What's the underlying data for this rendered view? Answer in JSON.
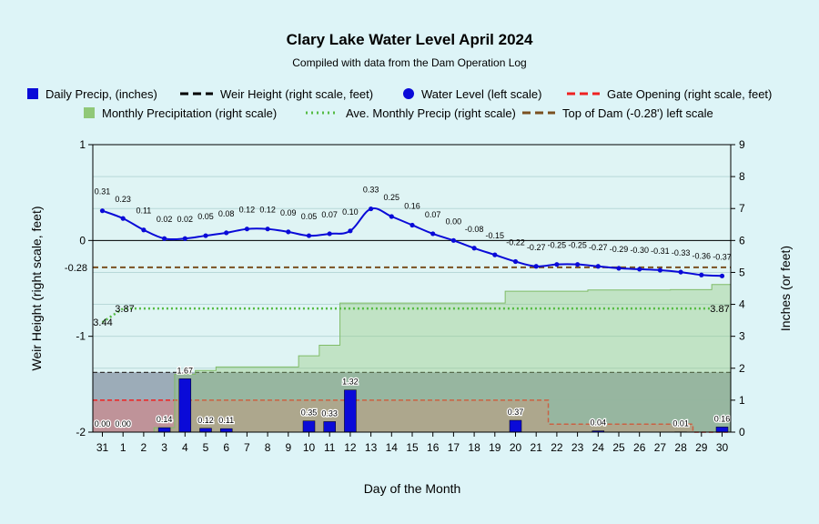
{
  "chart_data": {
    "type": "bar",
    "title": "Clary Lake Water Level April 2024",
    "subtitle": "Compiled with data from the Dam Operation Log",
    "xlabel": "Day of the Month",
    "ylabel_left": "Weir Height (right scale, feet)",
    "ylabel_right": "Inches (or feet)",
    "x_ticks": [
      "31",
      "1",
      "2",
      "3",
      "4",
      "5",
      "6",
      "7",
      "8",
      "9",
      "10",
      "11",
      "12",
      "13",
      "14",
      "15",
      "16",
      "17",
      "18",
      "19",
      "20",
      "21",
      "22",
      "23",
      "24",
      "25",
      "26",
      "27",
      "28",
      "29",
      "30"
    ],
    "y_left_ticks": [
      "1",
      "0",
      "-1",
      "-2"
    ],
    "y_right_ticks": [
      "0",
      "1",
      "2",
      "3",
      "4",
      "5",
      "6",
      "7",
      "8",
      "9"
    ],
    "ylim_left": [
      -2,
      1
    ],
    "ylim_right": [
      0,
      9
    ],
    "legend_position": "top",
    "legend": [
      {
        "label": "Daily Precip, (inches)",
        "marker": "square",
        "color": "#0a0ad8"
      },
      {
        "label": "Weir Height (right scale, feet)",
        "marker": "dash",
        "color": "#000000"
      },
      {
        "label": "Water Level (left scale)",
        "marker": "circle",
        "color": "#0a0ad8"
      },
      {
        "label": "Gate Opening (right scale, feet)",
        "marker": "dash",
        "color": "#ee2222"
      },
      {
        "label": "Monthly Precipitation (right scale)",
        "marker": "square",
        "color": "#90c878"
      },
      {
        "label": "Ave. Monthly Precip (right scale)",
        "marker": "dots",
        "color": "#55bb44"
      },
      {
        "label": "Top of Dam (-0.28') left scale",
        "marker": "dash",
        "color": "#7a5020"
      }
    ],
    "series": [
      {
        "name": "Water Level (left scale)",
        "color": "#0a0ad8",
        "x": [
          31,
          1,
          2,
          3,
          4,
          5,
          6,
          7,
          8,
          9,
          10,
          11,
          12,
          13,
          14,
          15,
          16,
          17,
          18,
          19,
          20,
          21,
          22,
          23,
          24,
          25,
          26,
          27,
          28,
          29,
          30
        ],
        "values": [
          0.31,
          0.23,
          0.11,
          0.02,
          0.02,
          0.05,
          0.08,
          0.12,
          0.12,
          0.09,
          0.05,
          0.07,
          0.1,
          0.33,
          0.25,
          0.16,
          0.07,
          0.0,
          -0.08,
          -0.15,
          -0.22,
          -0.27,
          -0.25,
          -0.25,
          -0.27,
          -0.29,
          -0.3,
          -0.31,
          -0.33,
          -0.36,
          -0.37
        ],
        "labels": [
          "0.31",
          "0.23",
          "0.11",
          "0.02",
          "0.02",
          "0.05",
          "0.08",
          "0.12",
          "0.12",
          "0.09",
          "0.05",
          "0.07",
          "0.10",
          "0.33",
          "0.25",
          "0.16",
          "0.07",
          "0.00",
          "-0.08",
          "-0.15",
          "-0.22",
          "-0.27",
          "-0.25",
          "-0.25",
          "-0.27",
          "-0.29",
          "-0.30",
          "-0.31",
          "-0.33",
          "-0.36",
          "-0.37"
        ]
      },
      {
        "name": "Daily Precip, (inches)",
        "color": "#0a0ad8",
        "x": [
          31,
          1,
          3,
          4,
          5,
          6,
          10,
          11,
          12,
          20,
          24,
          28,
          30
        ],
        "values": [
          0.0,
          0.0,
          0.14,
          1.67,
          0.12,
          0.11,
          0.35,
          0.33,
          1.32,
          0.37,
          0.04,
          0.01,
          0.16
        ],
        "labels": [
          "0.00",
          "0.00",
          "0.14",
          "1.67",
          "0.12",
          "0.11",
          "0.35",
          "0.33",
          "1.32",
          "0.37",
          "0.04",
          "0.01",
          "0.16"
        ]
      },
      {
        "name": "Monthly Precipitation (right scale)",
        "color": "#90c878",
        "x": [
          31,
          1,
          2,
          3,
          4,
          5,
          6,
          7,
          8,
          9,
          10,
          11,
          12,
          13,
          14,
          15,
          16,
          17,
          18,
          19,
          20,
          21,
          22,
          23,
          24,
          25,
          26,
          27,
          28,
          29,
          30
        ],
        "values": [
          0,
          0,
          0,
          0.14,
          1.81,
          1.93,
          2.04,
          2.04,
          2.04,
          2.04,
          2.39,
          2.72,
          4.04,
          4.04,
          4.04,
          4.04,
          4.04,
          4.04,
          4.04,
          4.04,
          4.41,
          4.41,
          4.41,
          4.41,
          4.45,
          4.45,
          4.45,
          4.45,
          4.46,
          4.46,
          4.62
        ]
      },
      {
        "name": "Ave. Monthly Precip (right scale)",
        "color": "#55bb44",
        "x": [
          31,
          1,
          30
        ],
        "values": [
          3.44,
          3.87,
          3.87
        ],
        "labels": [
          "3.44",
          "3.87",
          "3.87"
        ]
      },
      {
        "name": "Weir Height (right scale, feet)",
        "color": "#000000",
        "value": 1.87
      },
      {
        "name": "Gate Opening (right scale, feet)",
        "color": "#ee2222",
        "x": [
          31,
          21,
          22,
          28,
          29,
          30
        ],
        "values": [
          1.0,
          1.0,
          0.25,
          0.25,
          0.0,
          0.0
        ]
      },
      {
        "name": "Top of Dam (-0.28') left scale",
        "color": "#7a5020",
        "value": -0.28,
        "label": "-0.28"
      }
    ]
  }
}
